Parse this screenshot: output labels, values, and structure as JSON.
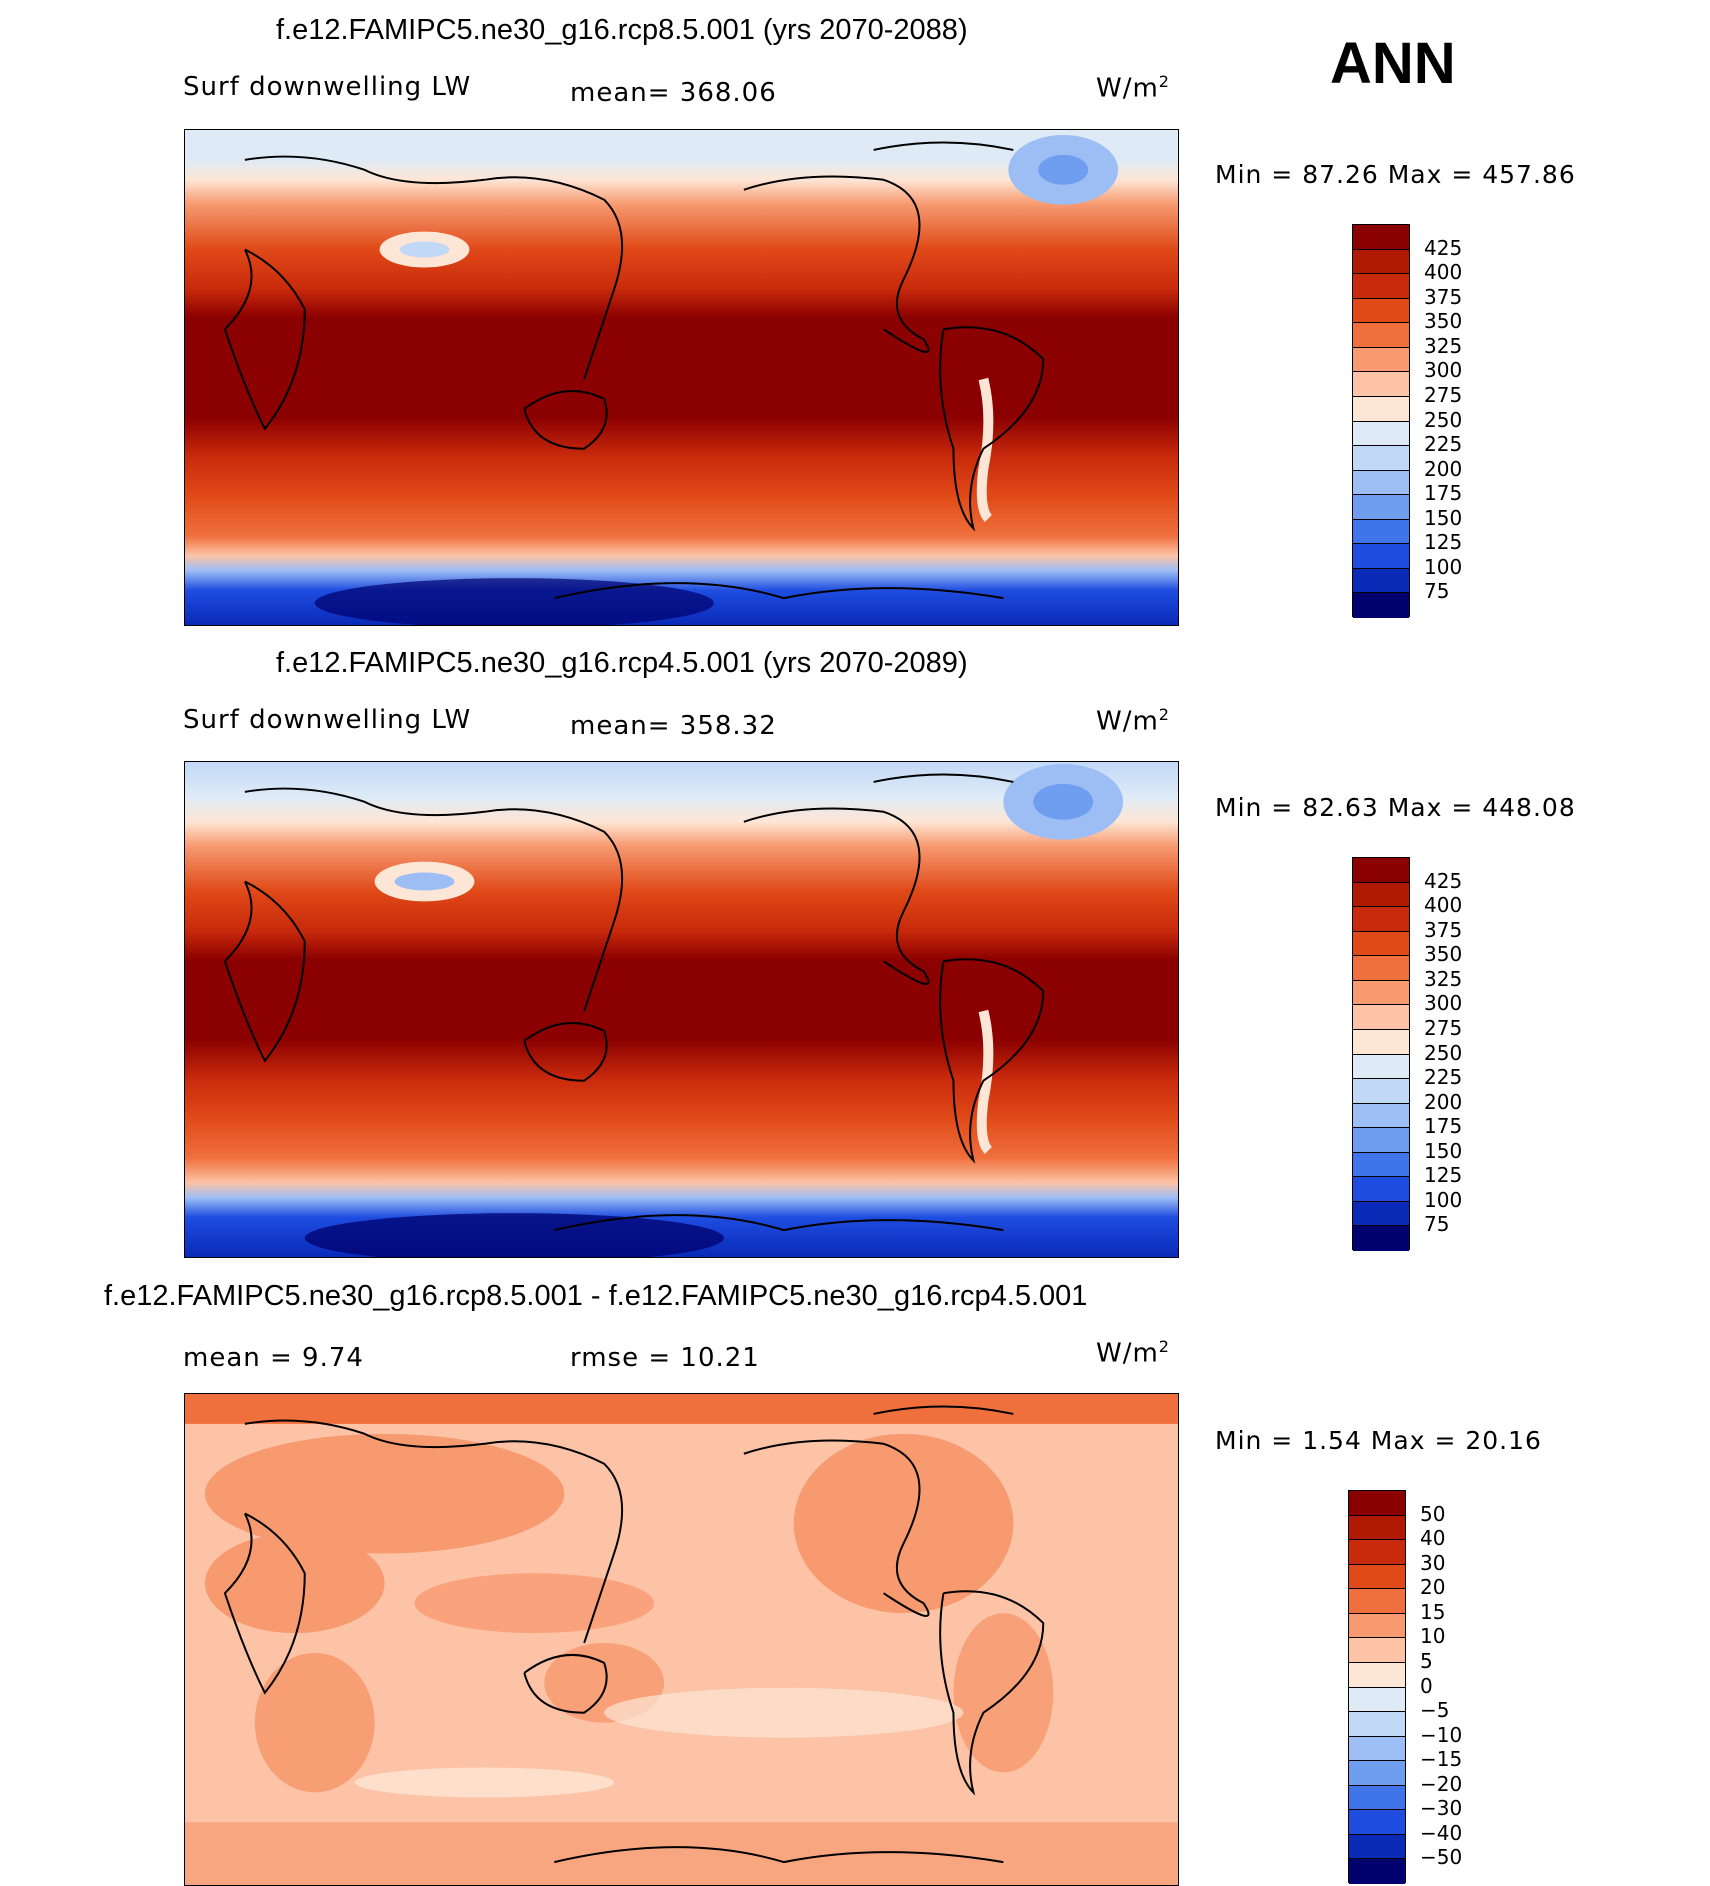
{
  "season": "ANN",
  "units_label": "W/m",
  "units_sup": "2",
  "panels": [
    {
      "title": "f.e12.FAMIPC5.ne30_g16.rcp8.5.001 (yrs 2070-2088)",
      "left_label": "Surf downwelling LW",
      "mid_label": "mean=  368.06",
      "minmax": "Min =   87.26  Max  =  457.86",
      "kind": "abs"
    },
    {
      "title": "f.e12.FAMIPC5.ne30_g16.rcp4.5.001 (yrs 2070-2089)",
      "left_label": "Surf downwelling LW",
      "mid_label": "mean=  358.32",
      "minmax": "Min =   82.63  Max  =  448.08",
      "kind": "abs2"
    },
    {
      "title": "f.e12.FAMIPC5.ne30_g16.rcp8.5.001 - f.e12.FAMIPC5.ne30_g16.rcp4.5.001",
      "left_label": "mean =     9.74",
      "mid_label": "rmse =    10.21",
      "minmax": "Min =     1.54  Max  =    20.16",
      "kind": "diff"
    }
  ],
  "colorbars": {
    "abs": {
      "ticks": [
        "425",
        "400",
        "375",
        "350",
        "325",
        "300",
        "275",
        "250",
        "225",
        "200",
        "175",
        "150",
        "125",
        "100",
        "75"
      ],
      "colors": [
        "#8b0000",
        "#b01a05",
        "#c92a0c",
        "#e04a18",
        "#f0703d",
        "#f79a70",
        "#fcc3a6",
        "#fee6d6",
        "#deebf7",
        "#c2d8f7",
        "#9dbef5",
        "#6f9ef0",
        "#3f74ea",
        "#1e4de0",
        "#0a2ab8",
        "#00006e"
      ]
    },
    "diff": {
      "ticks": [
        "50",
        "40",
        "30",
        "20",
        "15",
        "10",
        "5",
        "0",
        "−5",
        "−10",
        "−15",
        "−20",
        "−30",
        "−40",
        "−50"
      ],
      "colors": [
        "#8b0000",
        "#b01a05",
        "#c92a0c",
        "#e04a18",
        "#f0703d",
        "#f79a70",
        "#fcc3a6",
        "#fee6d6",
        "#deebf7",
        "#c2d8f7",
        "#9dbef5",
        "#6f9ef0",
        "#3f74ea",
        "#1e4de0",
        "#0a2ab8",
        "#00006e"
      ]
    }
  }
}
